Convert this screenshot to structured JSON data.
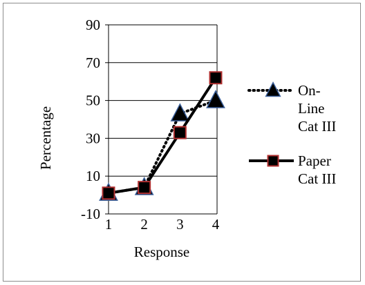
{
  "chart_data": {
    "type": "line",
    "title": "",
    "xlabel": "Response",
    "ylabel": "Percentage",
    "x": [
      1,
      2,
      3,
      4
    ],
    "ylim": [
      -10,
      90
    ],
    "yticks": [
      -10,
      10,
      30,
      50,
      70,
      90
    ],
    "xticks": [
      1,
      2,
      3,
      4
    ],
    "grid": "horizontal",
    "legend_position": "right",
    "series": [
      {
        "name": "On-Line Cat III",
        "legend_lines": [
          "On-",
          "Line",
          "Cat III"
        ],
        "values": [
          1,
          4,
          43,
          50
        ],
        "line_style": "dotted",
        "marker": "triangle",
        "line_color": "#000000",
        "marker_fill": "#000000",
        "marker_edge": "#3a5f9a"
      },
      {
        "name": "Paper Cat III",
        "legend_lines": [
          "Paper",
          "Cat III"
        ],
        "values": [
          1,
          4,
          33,
          62
        ],
        "line_style": "solid",
        "marker": "square",
        "line_color": "#000000",
        "marker_fill": "#000000",
        "marker_edge": "#b03030"
      }
    ]
  }
}
